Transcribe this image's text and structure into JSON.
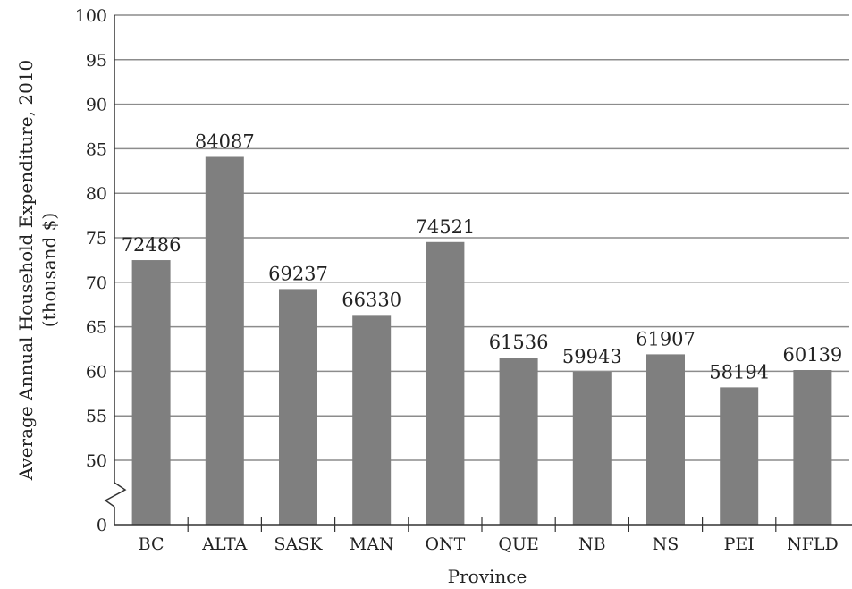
{
  "chart_data": {
    "type": "bar",
    "title": "",
    "xlabel": "Province",
    "ylabel": "Average Annual Household Expenditure, 2010",
    "ylabel_unit": "(thousand $)",
    "categories": [
      "BC",
      "ALTA",
      "SASK",
      "MAN",
      "ONT",
      "QUE",
      "NB",
      "NS",
      "PEI",
      "NFLD"
    ],
    "values": [
      72486,
      84087,
      69237,
      66330,
      74521,
      61536,
      59943,
      61907,
      58194,
      60139
    ],
    "value_labels": [
      "72486",
      "84087",
      "69237",
      "66330",
      "74521",
      "61536",
      "59943",
      "61907",
      "58194",
      "60139"
    ],
    "y_ticks": [
      {
        "value": 0,
        "label": "0"
      },
      {
        "value": 50,
        "label": "50"
      },
      {
        "value": 55,
        "label": "55"
      },
      {
        "value": 60,
        "label": "60"
      },
      {
        "value": 65,
        "label": "65"
      },
      {
        "value": 70,
        "label": "70"
      },
      {
        "value": 75,
        "label": "75"
      },
      {
        "value": 80,
        "label": "80"
      },
      {
        "value": 85,
        "label": "85"
      },
      {
        "value": 90,
        "label": "90"
      },
      {
        "value": 95,
        "label": "95"
      },
      {
        "value": 100,
        "label": "100"
      }
    ],
    "ylim": [
      0,
      100
    ],
    "axis_break": "between 0 and 50",
    "grid": true,
    "bar_color": "#7f7f7f",
    "grid_color": "#8c8c8c"
  }
}
